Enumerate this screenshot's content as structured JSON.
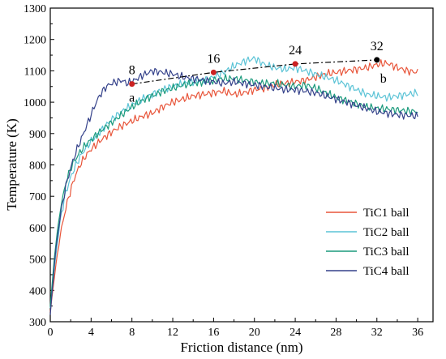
{
  "chart_data": {
    "type": "line",
    "xlabel": "Friction distance (nm)",
    "ylabel": "Temperature (K)",
    "xlim": [
      0,
      37.5
    ],
    "ylim": [
      300,
      1300
    ],
    "xticks": [
      0,
      4,
      8,
      12,
      16,
      20,
      24,
      28,
      32,
      36
    ],
    "yticks": [
      300,
      400,
      500,
      600,
      700,
      800,
      900,
      1000,
      1100,
      1200,
      1300
    ],
    "grid": false,
    "legend_position": "bottom-right",
    "series": [
      {
        "name": "TiC1 ball",
        "color": "#e8553a",
        "x": [
          0,
          0.5,
          1,
          1.5,
          2,
          2.5,
          3,
          3.5,
          4,
          5,
          6,
          7,
          8,
          9,
          10,
          11,
          12,
          13,
          14,
          15,
          16,
          17,
          18,
          19,
          20,
          21,
          22,
          23,
          24,
          25,
          26,
          27,
          28,
          29,
          30,
          31,
          32,
          33,
          34,
          35,
          36
        ],
        "values": [
          330,
          470,
          580,
          660,
          720,
          770,
          805,
          830,
          850,
          880,
          905,
          925,
          940,
          955,
          965,
          985,
          1000,
          1010,
          1020,
          1025,
          1030,
          1035,
          1025,
          1030,
          1040,
          1045,
          1055,
          1060,
          1065,
          1070,
          1080,
          1090,
          1095,
          1100,
          1105,
          1110,
          1120,
          1125,
          1110,
          1100,
          1095
        ]
      },
      {
        "name": "TiC2 ball",
        "color": "#5bc3d6",
        "x": [
          0,
          0.5,
          1,
          1.5,
          2,
          2.5,
          3,
          3.5,
          4,
          5,
          6,
          7,
          8,
          9,
          10,
          11,
          12,
          13,
          14,
          15,
          16,
          17,
          18,
          19,
          20,
          21,
          22,
          23,
          24,
          25,
          26,
          27,
          28,
          29,
          30,
          31,
          32,
          33,
          34,
          35,
          36
        ],
        "values": [
          340,
          500,
          630,
          710,
          760,
          800,
          830,
          855,
          875,
          910,
          945,
          970,
          990,
          1010,
          1025,
          1040,
          1050,
          1060,
          1065,
          1070,
          1080,
          1095,
          1115,
          1130,
          1140,
          1120,
          1110,
          1105,
          1110,
          1100,
          1090,
          1080,
          1070,
          1055,
          1040,
          1025,
          1020,
          1015,
          1020,
          1025,
          1030
        ]
      },
      {
        "name": "TiC3 ball",
        "color": "#1a9a7c",
        "x": [
          0,
          0.5,
          1,
          1.5,
          2,
          2.5,
          3,
          3.5,
          4,
          5,
          6,
          7,
          8,
          9,
          10,
          11,
          12,
          13,
          14,
          15,
          16,
          17,
          18,
          19,
          20,
          21,
          22,
          23,
          24,
          25,
          26,
          27,
          28,
          29,
          30,
          31,
          32,
          33,
          34,
          35,
          36
        ],
        "values": [
          350,
          540,
          660,
          740,
          790,
          820,
          845,
          865,
          880,
          910,
          935,
          960,
          985,
          1005,
          1020,
          1035,
          1045,
          1055,
          1060,
          1065,
          1070,
          1075,
          1075,
          1070,
          1065,
          1060,
          1060,
          1055,
          1050,
          1055,
          1045,
          1030,
          1015,
          1005,
          995,
          985,
          980,
          978,
          975,
          972,
          970
        ]
      },
      {
        "name": "TiC4 ball",
        "color": "#34418a",
        "x": [
          0,
          0.5,
          1,
          1.5,
          2,
          2.5,
          3,
          3.5,
          4,
          4.5,
          5,
          5.5,
          6,
          6.5,
          7,
          7.5,
          8,
          9,
          10,
          11,
          12,
          13,
          14,
          15,
          16,
          17,
          18,
          19,
          20,
          21,
          22,
          23,
          24,
          25,
          26,
          27,
          28,
          29,
          30,
          31,
          32,
          33,
          34,
          35,
          36
        ],
        "values": [
          320,
          520,
          640,
          730,
          790,
          840,
          880,
          920,
          960,
          1000,
          1030,
          1050,
          1060,
          1065,
          1070,
          1060,
          1065,
          1085,
          1100,
          1095,
          1090,
          1080,
          1075,
          1070,
          1065,
          1060,
          1065,
          1060,
          1055,
          1050,
          1045,
          1040,
          1040,
          1035,
          1030,
          1020,
          1010,
          1000,
          990,
          980,
          970,
          965,
          960,
          958,
          955
        ]
      }
    ],
    "trend_line": {
      "style": "dash-dot",
      "x": [
        8,
        16,
        24,
        32
      ],
      "y": [
        1058,
        1095,
        1122,
        1135
      ]
    },
    "annotations": [
      {
        "text": "8",
        "x": 8,
        "y": 1058,
        "dot_color": "#cc2222",
        "label_dx": 0,
        "label_dy": -12
      },
      {
        "text": "16",
        "x": 16,
        "y": 1095,
        "dot_color": "#cc2222",
        "label_dx": 0,
        "label_dy": -12
      },
      {
        "text": "24",
        "x": 24,
        "y": 1122,
        "dot_color": "#cc2222",
        "label_dx": 0,
        "label_dy": -12
      },
      {
        "text": "32",
        "x": 32,
        "y": 1135,
        "dot_color": "#000000",
        "label_dx": 0,
        "label_dy": -12
      },
      {
        "text": "a",
        "x": 8,
        "y": 1058,
        "dot_color": "",
        "label_dx": 0,
        "label_dy": 22
      },
      {
        "text": "b",
        "x": 32,
        "y": 1135,
        "dot_color": "",
        "label_dx": 8,
        "label_dy": 28
      }
    ]
  }
}
